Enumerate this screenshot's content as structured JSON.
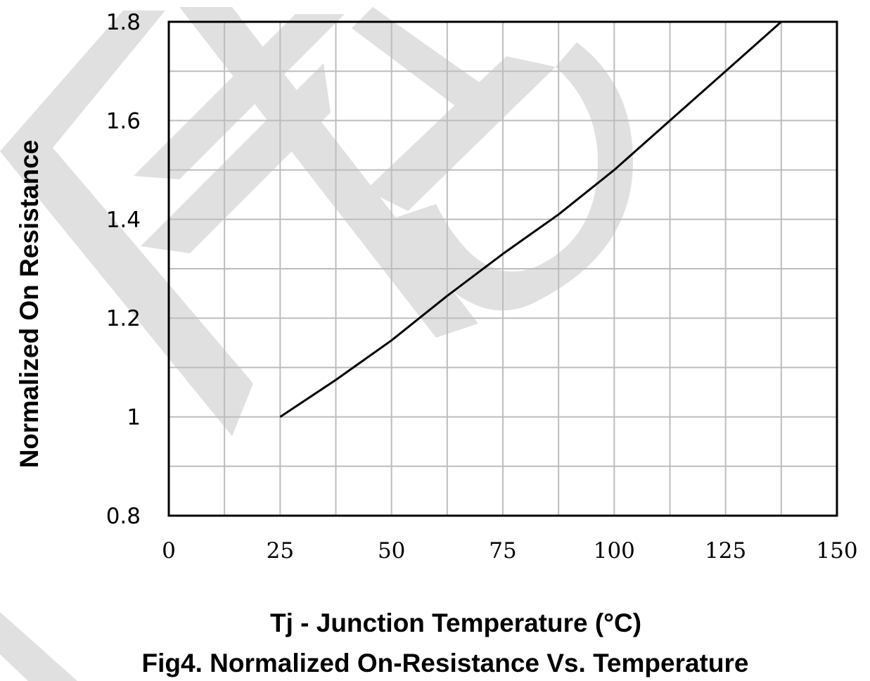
{
  "chart_data": {
    "type": "line",
    "title": "Fig4. Normalized On-Resistance Vs. Temperature",
    "xlabel": "Tj - Junction Temperature (°C)",
    "ylabel": "Normalized On Resistance",
    "xlim": [
      0,
      150
    ],
    "ylim": [
      0.8,
      1.8
    ],
    "xticks": [
      0,
      25,
      50,
      75,
      100,
      125,
      150
    ],
    "xtick_labels": [
      "0",
      "25",
      "50",
      "75",
      "100",
      "125",
      "150"
    ],
    "yticks": [
      0.8,
      1.0,
      1.2,
      1.4,
      1.6,
      1.8
    ],
    "ytick_labels": [
      "0.8",
      "1",
      "1.2",
      "1.4",
      "1.6",
      "1.8"
    ],
    "grid": true,
    "x_minor_step": 12.5,
    "y_minor_step": 0.1,
    "series": [
      {
        "color": "#000000",
        "x": [
          25,
          37.5,
          50,
          62.5,
          75,
          87.5,
          100,
          112.5,
          125,
          137.5
        ],
        "y": [
          1.0,
          1.075,
          1.155,
          1.245,
          1.33,
          1.41,
          1.5,
          1.6,
          1.7,
          1.8
        ]
      }
    ]
  },
  "watermark": {
    "color": "#e0e0e0"
  }
}
